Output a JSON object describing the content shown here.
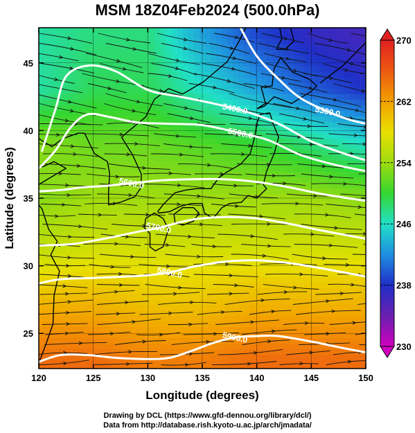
{
  "title": "MSM 18Z04Feb2024 (500.0hPa)",
  "x_axis": {
    "label": "Longitude (degrees)",
    "range": [
      120,
      150
    ],
    "ticks": [
      120,
      125,
      130,
      135,
      140,
      145,
      150
    ]
  },
  "y_axis": {
    "label": "Latitude  (degrees)",
    "range": [
      22.4,
      47.6
    ],
    "ticks": [
      25,
      30,
      35,
      40,
      45
    ]
  },
  "colorbar": {
    "range": [
      230,
      270
    ],
    "ticks": [
      230,
      238,
      246,
      254,
      262,
      270
    ],
    "colors": [
      "#d000c0",
      "#6a1fb0",
      "#1f2fc8",
      "#1f8fe0",
      "#21e0c8",
      "#35d630",
      "#9fdc10",
      "#e8e000",
      "#f3a000",
      "#ee5a12",
      "#e02020"
    ]
  },
  "field": {
    "variable": "temperature",
    "unit": "K",
    "lon": [
      120,
      125,
      130,
      135,
      140,
      145,
      150
    ],
    "lat": [
      23,
      27,
      31,
      35,
      39,
      43,
      47
    ],
    "values": [
      [
        265,
        265,
        264,
        264,
        265,
        265,
        265
      ],
      [
        261,
        261,
        260,
        260,
        261,
        261,
        261
      ],
      [
        256,
        257,
        257,
        257,
        257,
        257,
        257
      ],
      [
        253,
        254,
        254,
        254,
        254,
        254,
        253
      ],
      [
        253,
        252,
        252,
        251,
        250,
        248,
        246
      ],
      [
        247,
        249,
        249,
        246,
        243,
        240,
        238
      ],
      [
        247,
        248,
        248,
        243,
        239,
        237,
        236
      ]
    ]
  },
  "contours": [
    {
      "label": "5300.0",
      "label_lon": 146.5,
      "label_lat": 41.4,
      "points": [
        [
          138.5,
          47.6
        ],
        [
          140,
          45.5
        ],
        [
          142,
          43.8
        ],
        [
          144,
          42.4
        ],
        [
          146.5,
          41.4
        ],
        [
          148.5,
          40.8
        ],
        [
          150,
          40.5
        ]
      ]
    },
    {
      "label": "5400.0",
      "label_lon": 138,
      "label_lat": 41.6,
      "points": [
        [
          120.3,
          38.5
        ],
        [
          121.5,
          41.5
        ],
        [
          122.5,
          44
        ],
        [
          124.5,
          44.8
        ],
        [
          127,
          44.4
        ],
        [
          130,
          43
        ],
        [
          133,
          42.5
        ],
        [
          136,
          42
        ],
        [
          139,
          41.4
        ],
        [
          142,
          40.5
        ],
        [
          145,
          39.2
        ],
        [
          148,
          38.3
        ],
        [
          150,
          37.8
        ]
      ]
    },
    {
      "label": "5500.0",
      "label_lon": 138.5,
      "label_lat": 39.8,
      "points": [
        [
          120,
          37.2
        ],
        [
          121.5,
          38.5
        ],
        [
          123,
          40.3
        ],
        [
          124.5,
          41.2
        ],
        [
          126.5,
          41
        ],
        [
          129,
          40.6
        ],
        [
          132,
          40.5
        ],
        [
          135,
          40.4
        ],
        [
          138,
          39.9
        ],
        [
          141,
          39.3
        ],
        [
          144,
          38.2
        ],
        [
          147,
          37.5
        ],
        [
          150,
          37
        ]
      ]
    },
    {
      "label": "5600.0",
      "label_lon": 128.5,
      "label_lat": 36.1,
      "points": [
        [
          120,
          35.5
        ],
        [
          122,
          35.6
        ],
        [
          124,
          35.8
        ],
        [
          126,
          35.9
        ],
        [
          128.5,
          36.1
        ],
        [
          131,
          36.3
        ],
        [
          134,
          36.4
        ],
        [
          137,
          36.4
        ],
        [
          140,
          36.2
        ],
        [
          143,
          35.8
        ],
        [
          146,
          35.3
        ],
        [
          150,
          34.8
        ]
      ]
    },
    {
      "label": "5700.0",
      "label_lon": 131,
      "label_lat": 32.8,
      "points": [
        [
          120,
          31.5
        ],
        [
          123,
          31.6
        ],
        [
          126,
          32
        ],
        [
          129,
          32.5
        ],
        [
          131,
          32.8
        ],
        [
          134,
          33.4
        ],
        [
          137,
          33.6
        ],
        [
          140,
          33.5
        ],
        [
          143,
          33.1
        ],
        [
          146,
          32.6
        ],
        [
          150,
          32
        ]
      ]
    },
    {
      "label": "5800.0",
      "label_lon": 132,
      "label_lat": 29.5,
      "points": [
        [
          120,
          28.7
        ],
        [
          122,
          29
        ],
        [
          125,
          29.1
        ],
        [
          128,
          29.2
        ],
        [
          130,
          29.3
        ],
        [
          132,
          29.5
        ],
        [
          134,
          29.9
        ],
        [
          137,
          30.3
        ],
        [
          140,
          30.4
        ],
        [
          143,
          30.2
        ],
        [
          146,
          29.8
        ],
        [
          150,
          29.2
        ]
      ]
    },
    {
      "label": "5900.0",
      "label_lon": 138,
      "label_lat": 24.7,
      "points": [
        [
          120,
          22.9
        ],
        [
          122,
          23.4
        ],
        [
          124.5,
          23.4
        ],
        [
          127,
          23.2
        ],
        [
          130,
          23.1
        ],
        [
          132,
          23.2
        ],
        [
          134,
          23.7
        ],
        [
          136,
          24.3
        ],
        [
          138,
          24.7
        ],
        [
          140,
          24.8
        ],
        [
          142,
          24.8
        ],
        [
          145,
          24.4
        ],
        [
          148,
          23.9
        ],
        [
          150,
          23.6
        ]
      ]
    }
  ],
  "coastlines": [
    {
      "name": "honshu",
      "points": [
        [
          130.9,
          34.0
        ],
        [
          131.5,
          34.6
        ],
        [
          132.5,
          35.4
        ],
        [
          133.5,
          35.6
        ],
        [
          134.5,
          35.7
        ],
        [
          135.8,
          35.7
        ],
        [
          136.5,
          36.5
        ],
        [
          137.2,
          36.9
        ],
        [
          138.5,
          37.5
        ],
        [
          139.4,
          38.3
        ],
        [
          139.8,
          39.5
        ],
        [
          140.0,
          40.5
        ],
        [
          140.3,
          41.2
        ],
        [
          141.2,
          41.3
        ],
        [
          141.5,
          40.5
        ],
        [
          142.0,
          39.5
        ],
        [
          141.6,
          38.3
        ],
        [
          140.9,
          37.0
        ],
        [
          140.6,
          36.0
        ],
        [
          140.9,
          35.7
        ],
        [
          140.0,
          35.0
        ],
        [
          139.2,
          35.2
        ],
        [
          138.6,
          34.7
        ],
        [
          137.5,
          34.6
        ],
        [
          136.8,
          34.3
        ],
        [
          136.0,
          33.5
        ],
        [
          135.2,
          33.9
        ],
        [
          135.0,
          34.6
        ],
        [
          134.0,
          34.6
        ],
        [
          133.0,
          34.4
        ],
        [
          132.0,
          34.0
        ],
        [
          131.0,
          33.9
        ],
        [
          130.9,
          34.0
        ]
      ]
    },
    {
      "name": "kyushu",
      "points": [
        [
          129.8,
          33.5
        ],
        [
          130.6,
          33.9
        ],
        [
          131.4,
          33.5
        ],
        [
          131.9,
          32.7
        ],
        [
          131.4,
          31.4
        ],
        [
          130.7,
          31.1
        ],
        [
          130.2,
          31.4
        ],
        [
          130.2,
          32.4
        ],
        [
          129.7,
          32.8
        ],
        [
          129.8,
          33.5
        ]
      ]
    },
    {
      "name": "shikoku",
      "points": [
        [
          132.4,
          33.8
        ],
        [
          133.2,
          34.3
        ],
        [
          134.2,
          34.3
        ],
        [
          134.7,
          33.9
        ],
        [
          134.2,
          33.3
        ],
        [
          133.2,
          33.0
        ],
        [
          132.5,
          33.2
        ],
        [
          132.4,
          33.8
        ]
      ]
    },
    {
      "name": "hokkaido",
      "points": [
        [
          140.0,
          41.6
        ],
        [
          140.8,
          42.0
        ],
        [
          140.4,
          43.2
        ],
        [
          141.4,
          43.3
        ],
        [
          141.6,
          44.6
        ],
        [
          142.2,
          45.4
        ],
        [
          143.3,
          44.3
        ],
        [
          144.8,
          43.8
        ],
        [
          145.5,
          43.3
        ],
        [
          145.0,
          42.9
        ],
        [
          143.2,
          42.0
        ],
        [
          141.6,
          42.5
        ],
        [
          140.7,
          41.8
        ],
        [
          140.0,
          41.6
        ]
      ]
    },
    {
      "name": "sakhalin",
      "points": [
        [
          141.8,
          46.0
        ],
        [
          142.3,
          46.8
        ],
        [
          142.1,
          47.6
        ],
        [
          143.1,
          47.6
        ],
        [
          143.4,
          46.6
        ],
        [
          142.6,
          46.0
        ],
        [
          141.8,
          46.0
        ]
      ]
    },
    {
      "name": "korea",
      "points": [
        [
          124.2,
          39.8
        ],
        [
          125.1,
          38.3
        ],
        [
          126.3,
          37.7
        ],
        [
          126.5,
          36.8
        ],
        [
          126.4,
          35.5
        ],
        [
          126.4,
          34.5
        ],
        [
          127.5,
          34.7
        ],
        [
          128.8,
          35.1
        ],
        [
          129.4,
          35.8
        ],
        [
          129.4,
          36.8
        ],
        [
          128.6,
          38.2
        ],
        [
          127.6,
          39.5
        ],
        [
          128.3,
          40.0
        ],
        [
          129.8,
          41.0
        ],
        [
          130.6,
          42.3
        ]
      ]
    },
    {
      "name": "china-coast",
      "points": [
        [
          120.0,
          22.8
        ],
        [
          120.7,
          24.3
        ],
        [
          121.3,
          25.7
        ],
        [
          121.4,
          27.8
        ],
        [
          121.9,
          29.6
        ],
        [
          121.1,
          30.8
        ],
        [
          121.7,
          31.8
        ],
        [
          120.9,
          32.7
        ],
        [
          120.3,
          34.2
        ],
        [
          119.5,
          35.0
        ]
      ]
    },
    {
      "name": "shandong",
      "points": [
        [
          120.0,
          36.0
        ],
        [
          120.6,
          36.3
        ],
        [
          122.5,
          37.2
        ],
        [
          121.4,
          37.7
        ],
        [
          120.3,
          37.3
        ]
      ]
    },
    {
      "name": "liaodong",
      "points": [
        [
          120.0,
          39.4
        ],
        [
          121.2,
          38.8
        ],
        [
          122.2,
          39.4
        ],
        [
          123.6,
          39.8
        ],
        [
          124.2,
          39.8
        ]
      ]
    },
    {
      "name": "russia-coast",
      "points": [
        [
          130.6,
          42.3
        ],
        [
          131.9,
          43.1
        ],
        [
          133.2,
          42.7
        ],
        [
          135.1,
          43.6
        ],
        [
          137.3,
          45.1
        ],
        [
          138.3,
          46.5
        ],
        [
          139.0,
          47.6
        ]
      ]
    },
    {
      "name": "kurils",
      "points": [
        [
          145.8,
          43.5
        ],
        [
          146.6,
          44.0
        ],
        [
          147.9,
          44.8
        ],
        [
          148.9,
          45.6
        ],
        [
          150.0,
          46.5
        ]
      ]
    }
  ],
  "credits": {
    "line1": "Drawing by DCL (https://www.gfd-dennou.org/library/dcl/)",
    "line2": "Data from http://database.rish.kyoto-u.ac.jp/arch/jmadata/"
  }
}
